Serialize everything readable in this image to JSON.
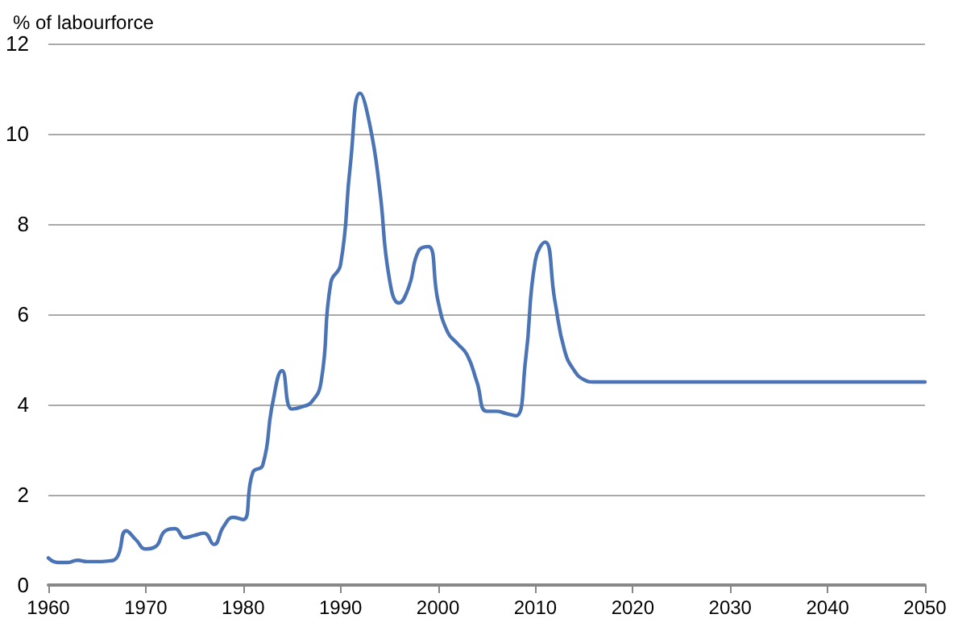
{
  "chart_data": {
    "type": "line",
    "ylabel": "% of labourforce",
    "x": [
      1960,
      1961,
      1962,
      1963,
      1964,
      1965,
      1966,
      1967,
      1968,
      1969,
      1970,
      1971,
      1972,
      1973,
      1974,
      1975,
      1976,
      1977,
      1978,
      1979,
      1980,
      1981,
      1982,
      1983,
      1984,
      1985,
      1986,
      1987,
      1988,
      1989,
      1990,
      1991,
      1992,
      1993,
      1994,
      1995,
      1996,
      1997,
      1998,
      1999,
      2000,
      2001,
      2002,
      2003,
      2004,
      2005,
      2006,
      2007,
      2008,
      2009,
      2010,
      2011,
      2012,
      2013,
      2014,
      2015,
      2016,
      2020,
      2030,
      2040,
      2050
    ],
    "series": [
      {
        "color": "#4a74b5",
        "values": [
          0.6,
          0.5,
          0.5,
          0.55,
          0.52,
          0.52,
          0.53,
          0.6,
          1.2,
          1.0,
          0.8,
          0.85,
          1.2,
          1.25,
          1.05,
          1.1,
          1.15,
          0.9,
          1.3,
          1.5,
          1.45,
          2.5,
          2.65,
          4.0,
          4.75,
          3.9,
          3.95,
          4.05,
          4.5,
          6.7,
          7.1,
          9.3,
          10.9,
          10.2,
          8.8,
          6.8,
          6.25,
          6.6,
          7.4,
          7.5,
          6.3,
          5.6,
          5.35,
          5.1,
          4.5,
          3.85,
          3.85,
          3.8,
          3.75,
          5.0,
          7.2,
          7.6,
          6.3,
          5.2,
          4.75,
          4.55,
          4.5,
          4.5,
          4.5,
          4.5,
          4.5
        ]
      }
    ],
    "xlim": [
      1960,
      2050
    ],
    "xticks": [
      1960,
      1970,
      1980,
      1990,
      2000,
      2010,
      2020,
      2030,
      2040,
      2050
    ],
    "ylim": [
      0,
      12
    ],
    "yticks": [
      0,
      2,
      4,
      6,
      8,
      10,
      12
    ],
    "grid": "y",
    "marker": "none",
    "line_style": "solid"
  }
}
